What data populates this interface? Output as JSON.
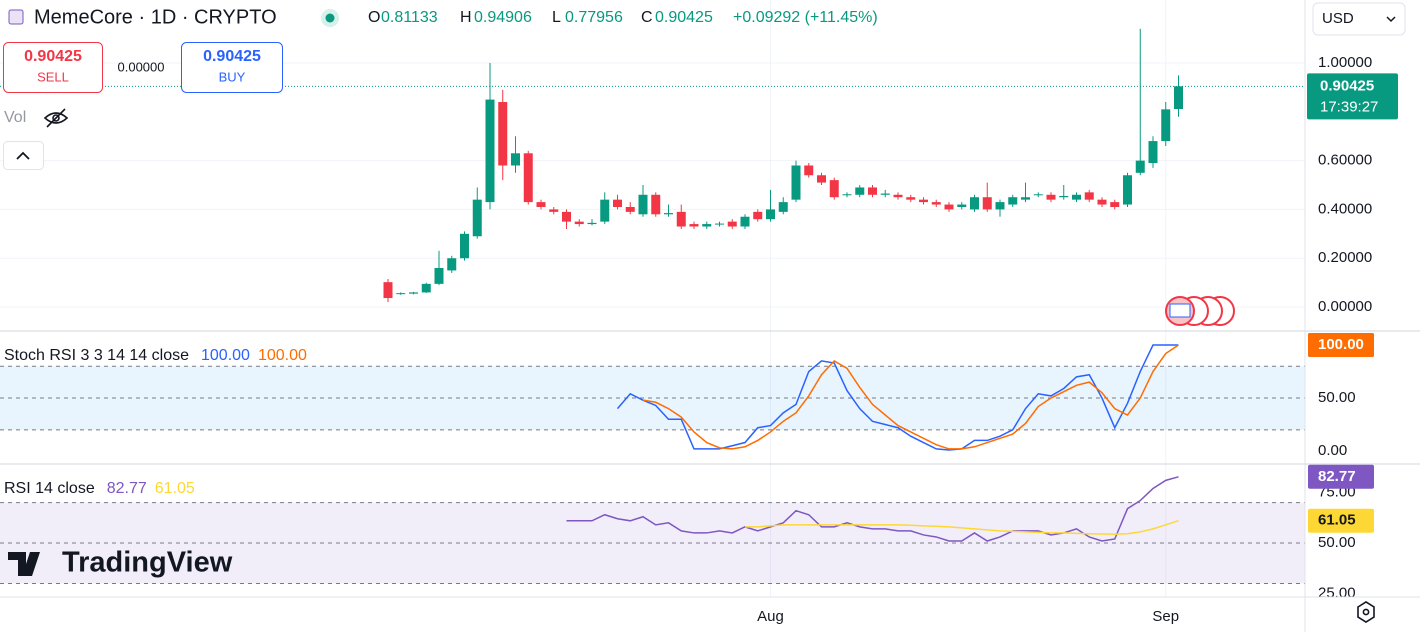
{
  "ui": {
    "symbol_title": "MemeCore · 1D · CRYPTO",
    "ohlc": [
      {
        "key": "O",
        "value": "0.81133"
      },
      {
        "key": "H",
        "value": "0.94906"
      },
      {
        "key": "L",
        "value": "0.77956"
      },
      {
        "key": "C",
        "value": "0.90425"
      }
    ],
    "change": "+0.09292 (+11.45%)",
    "sell_price": "0.90425",
    "sell": "SELL",
    "spread": "0.00000",
    "buy_price": "0.90425",
    "buy": "BUY",
    "vol": "Vol",
    "currency": "USD",
    "countdown": "17:39:27",
    "logo": "TradingView"
  },
  "chart_data": [
    {
      "type": "candlestick",
      "categories": [
        null,
        null,
        null,
        null,
        null,
        null,
        null,
        null,
        null,
        null,
        null,
        null,
        null,
        null,
        null,
        null,
        null,
        null,
        null,
        null,
        null,
        null,
        null,
        null,
        null,
        null,
        null,
        null,
        null,
        null,
        "Aug",
        null,
        null,
        null,
        null,
        null,
        null,
        null,
        null,
        null,
        null,
        null,
        null,
        null,
        null,
        null,
        null,
        null,
        null,
        null,
        null,
        null,
        null,
        null,
        null,
        null,
        null,
        null,
        null,
        null,
        null,
        "Sep",
        null
      ],
      "open": [
        0.102,
        0.055,
        0.055,
        0.06,
        0.095,
        0.15,
        0.2,
        0.29,
        0.43,
        0.84,
        0.58,
        0.63,
        0.43,
        0.4,
        0.39,
        0.35,
        0.34,
        0.35,
        0.44,
        0.41,
        0.38,
        0.46,
        0.38,
        0.39,
        0.34,
        0.33,
        0.34,
        0.35,
        0.33,
        0.39,
        0.36,
        0.39,
        0.44,
        0.58,
        0.54,
        0.52,
        0.46,
        0.46,
        0.49,
        0.46,
        0.46,
        0.45,
        0.44,
        0.43,
        0.42,
        0.41,
        0.4,
        0.45,
        0.4,
        0.42,
        0.44,
        0.46,
        0.46,
        0.45,
        0.44,
        0.47,
        0.44,
        0.43,
        0.42,
        0.55,
        0.59,
        0.68,
        0.81133
      ],
      "high": [
        0.115,
        0.06,
        0.062,
        0.1,
        0.23,
        0.21,
        0.31,
        0.49,
        1.0,
        0.89,
        0.7,
        0.64,
        0.44,
        0.41,
        0.4,
        0.36,
        0.36,
        0.47,
        0.46,
        0.43,
        0.5,
        0.47,
        0.42,
        0.42,
        0.35,
        0.35,
        0.35,
        0.36,
        0.38,
        0.4,
        0.48,
        0.45,
        0.6,
        0.59,
        0.55,
        0.53,
        0.47,
        0.5,
        0.5,
        0.48,
        0.47,
        0.46,
        0.45,
        0.44,
        0.43,
        0.43,
        0.46,
        0.51,
        0.44,
        0.46,
        0.51,
        0.47,
        0.47,
        0.5,
        0.47,
        0.48,
        0.45,
        0.44,
        0.55,
        1.14,
        0.7,
        0.84,
        0.94906
      ],
      "low": [
        0.02,
        0.05,
        0.052,
        0.058,
        0.09,
        0.14,
        0.19,
        0.28,
        0.4,
        0.52,
        0.55,
        0.42,
        0.4,
        0.38,
        0.32,
        0.33,
        0.335,
        0.34,
        0.4,
        0.38,
        0.37,
        0.37,
        0.37,
        0.32,
        0.32,
        0.32,
        0.33,
        0.32,
        0.32,
        0.35,
        0.35,
        0.38,
        0.43,
        0.53,
        0.5,
        0.44,
        0.45,
        0.45,
        0.45,
        0.45,
        0.44,
        0.43,
        0.42,
        0.41,
        0.39,
        0.4,
        0.39,
        0.39,
        0.37,
        0.41,
        0.43,
        0.45,
        0.43,
        0.44,
        0.43,
        0.43,
        0.41,
        0.4,
        0.41,
        0.54,
        0.57,
        0.66,
        0.77956
      ],
      "close": [
        0.037,
        0.057,
        0.06,
        0.095,
        0.16,
        0.2,
        0.3,
        0.44,
        0.85,
        0.58,
        0.63,
        0.43,
        0.41,
        0.39,
        0.35,
        0.34,
        0.345,
        0.44,
        0.41,
        0.39,
        0.46,
        0.38,
        0.385,
        0.33,
        0.33,
        0.34,
        0.342,
        0.33,
        0.37,
        0.36,
        0.4,
        0.43,
        0.58,
        0.54,
        0.51,
        0.45,
        0.462,
        0.49,
        0.46,
        0.465,
        0.45,
        0.44,
        0.43,
        0.42,
        0.4,
        0.42,
        0.45,
        0.4,
        0.43,
        0.45,
        0.45,
        0.462,
        0.44,
        0.455,
        0.46,
        0.44,
        0.42,
        0.41,
        0.54,
        0.6,
        0.68,
        0.81,
        0.90425
      ],
      "up_color": "#089981",
      "down_color": "#f23645",
      "ylim": [
        -0.094,
        1.258
      ],
      "yticks": [
        {
          "value": 0,
          "label": "0.00000"
        },
        {
          "value": 0.2,
          "label": "0.20000"
        },
        {
          "value": 0.4,
          "label": "0.40000"
        },
        {
          "value": 0.6,
          "label": "0.60000"
        },
        {
          "value": 1.0,
          "label": "1.00000"
        }
      ],
      "last": {
        "value": 0.90425,
        "label": "0.90425"
      },
      "grid": true
    },
    {
      "type": "line",
      "title": "Stoch RSI 3 3 14 14 close",
      "ylim": [
        -11.3,
        112.3
      ],
      "yticks": [
        {
          "value": 0,
          "label": "0.00"
        },
        {
          "value": 50,
          "label": "50.00"
        }
      ],
      "bands": [
        20,
        50,
        80
      ],
      "band_color": "#2196f3",
      "series": [
        {
          "color": "#2962ff",
          "current": {
            "value": 100,
            "label": "100.00"
          },
          "values": [
            null,
            null,
            null,
            null,
            null,
            null,
            null,
            null,
            null,
            null,
            null,
            null,
            null,
            null,
            null,
            null,
            null,
            null,
            40,
            54,
            48,
            43,
            30,
            30,
            2,
            2,
            2,
            5,
            8,
            22,
            24,
            36,
            44,
            75,
            85,
            83,
            57,
            40,
            28,
            25,
            22,
            14,
            8,
            2,
            1,
            2,
            10,
            10,
            14,
            20,
            40,
            54,
            52,
            59,
            70,
            72,
            50,
            22,
            45,
            75,
            100,
            100,
            100
          ]
        },
        {
          "color": "#ff6d00",
          "current": {
            "value": 100,
            "label": "100.00"
          },
          "values": [
            null,
            null,
            null,
            null,
            null,
            null,
            null,
            null,
            null,
            null,
            null,
            null,
            null,
            null,
            null,
            null,
            null,
            null,
            null,
            null,
            48,
            46,
            40,
            32,
            18,
            8,
            3,
            2,
            4,
            10,
            18,
            28,
            36,
            52,
            72,
            85,
            78,
            60,
            44,
            34,
            24,
            18,
            12,
            6,
            2,
            2,
            4,
            8,
            12,
            16,
            26,
            42,
            50,
            56,
            62,
            65,
            55,
            40,
            34,
            50,
            75,
            92,
            100
          ]
        }
      ]
    },
    {
      "type": "line",
      "title": "RSI 14 close",
      "ylim": [
        23.8,
        88.6
      ],
      "yticks": [
        {
          "value": 25,
          "label": "25.00"
        },
        {
          "value": 50,
          "label": "50.00"
        },
        {
          "value": 75,
          "label": "75.00"
        }
      ],
      "bands": [
        30,
        50,
        70
      ],
      "band_color": "#7e57c2",
      "series": [
        {
          "color": "#7e57c2",
          "current": {
            "value": 82.77,
            "label": "82.77"
          },
          "values": [
            null,
            null,
            null,
            null,
            null,
            null,
            null,
            null,
            null,
            null,
            null,
            null,
            null,
            null,
            61,
            61,
            61,
            64,
            62,
            61,
            63,
            59,
            60,
            56,
            55,
            55,
            56,
            55,
            58,
            56,
            58,
            60,
            66,
            64,
            58,
            58,
            60,
            58,
            57,
            57,
            56,
            56,
            54,
            53,
            51,
            51,
            55,
            51,
            53,
            56,
            56,
            56,
            54,
            55,
            57,
            53,
            51,
            52,
            67,
            71,
            77,
            81,
            82.77
          ]
        },
        {
          "color": "#fdd835",
          "current": {
            "value": 61.05,
            "label": "61.05"
          },
          "values": [
            null,
            null,
            null,
            null,
            null,
            null,
            null,
            null,
            null,
            null,
            null,
            null,
            null,
            null,
            null,
            null,
            null,
            null,
            null,
            null,
            null,
            null,
            null,
            null,
            null,
            null,
            null,
            null,
            58,
            58,
            58.5,
            59,
            59,
            59,
            59,
            59,
            59,
            59,
            59,
            59,
            59,
            58.8,
            58.5,
            58.3,
            58,
            57.5,
            57,
            56.5,
            56,
            55.8,
            55.5,
            55.3,
            55,
            55,
            54.8,
            54.6,
            54.5,
            54.4,
            54.6,
            55.5,
            57,
            59,
            61.05
          ]
        }
      ]
    }
  ]
}
